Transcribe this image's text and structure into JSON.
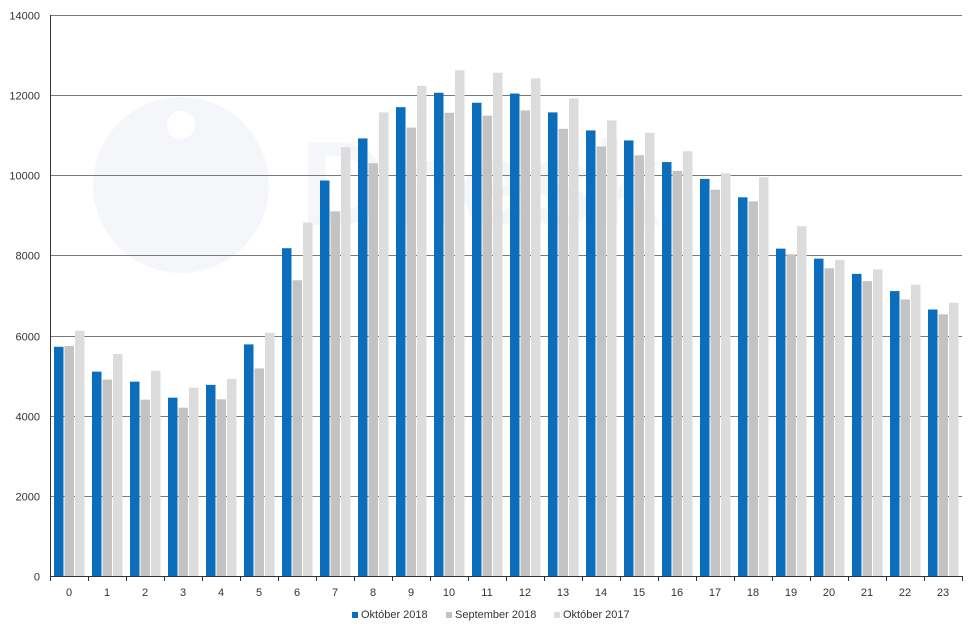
{
  "chart_data": {
    "type": "bar",
    "title": "",
    "xlabel": "",
    "ylabel": "",
    "ylim": [
      0,
      14000
    ],
    "y_ticks": [
      0,
      2000,
      4000,
      6000,
      8000,
      10000,
      12000,
      14000
    ],
    "grid": true,
    "legend_position": "bottom",
    "categories": [
      "0",
      "1",
      "2",
      "3",
      "4",
      "5",
      "6",
      "7",
      "8",
      "9",
      "10",
      "11",
      "12",
      "13",
      "14",
      "15",
      "16",
      "17",
      "18",
      "19",
      "20",
      "21",
      "22",
      "23"
    ],
    "series": [
      {
        "name": "Október 2018",
        "color": "#0a6ebd",
        "values": [
          5720,
          5100,
          4850,
          4450,
          4770,
          5780,
          8180,
          9870,
          10920,
          11700,
          12060,
          11810,
          12040,
          11570,
          11120,
          10870,
          10330,
          9910,
          9450,
          8170,
          7920,
          7540,
          7110,
          6650
        ]
      },
      {
        "name": "September 2018",
        "color": "#c3c3c3",
        "values": [
          5740,
          4900,
          4400,
          4200,
          4410,
          5180,
          7380,
          9100,
          10300,
          11190,
          11560,
          11490,
          11620,
          11160,
          10720,
          10500,
          10110,
          9640,
          9350,
          8030,
          7680,
          7360,
          6900,
          6530
        ]
      },
      {
        "name": "Október 2017",
        "color": "#dcdcdc",
        "values": [
          6120,
          5540,
          5120,
          4700,
          4920,
          6070,
          8820,
          10700,
          11570,
          12230,
          12620,
          12560,
          12420,
          11920,
          11370,
          11060,
          10600,
          10050,
          9950,
          8730,
          7890,
          7650,
          7270,
          6820
        ]
      }
    ]
  }
}
